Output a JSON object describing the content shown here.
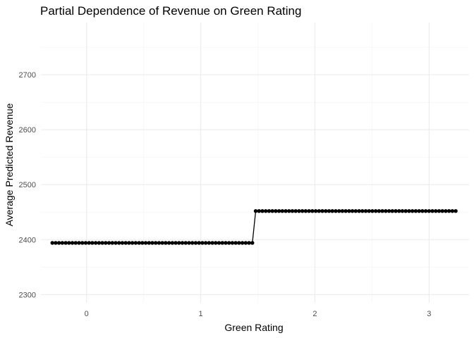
{
  "chart_data": {
    "type": "line",
    "title": "Partial Dependence of Revenue on Green Rating",
    "xlabel": "Green Rating",
    "ylabel": "Average Predicted Revenue",
    "xlim": [
      -0.4,
      3.35
    ],
    "ylim": [
      2285,
      2795
    ],
    "x_ticks": [
      0,
      1,
      2,
      3
    ],
    "y_ticks": [
      2300,
      2400,
      2500,
      2600,
      2700
    ],
    "grid": true,
    "legend": "none",
    "step_at": 1.46,
    "series": [
      {
        "x": [
          -0.3,
          -0.2708,
          -0.2416,
          -0.2124,
          -0.1832,
          -0.154,
          -0.1248,
          -0.0956,
          -0.0664,
          -0.0372,
          -0.008,
          0.0212,
          0.0504,
          0.0796,
          0.1088,
          0.138,
          0.1672,
          0.1964,
          0.2256,
          0.2548,
          0.284,
          0.3132,
          0.3424,
          0.3716,
          0.4008,
          0.43,
          0.4592,
          0.4884,
          0.5176,
          0.5468,
          0.576,
          0.6052,
          0.6344,
          0.6636,
          0.6928,
          0.722,
          0.7512,
          0.7804,
          0.8096,
          0.8388,
          0.868,
          0.8972,
          0.9264,
          0.9556,
          0.9848,
          1.014,
          1.0432,
          1.0724,
          1.1016,
          1.1308,
          1.16,
          1.1892,
          1.2184,
          1.2476,
          1.2768,
          1.306,
          1.3352,
          1.3644,
          1.3936,
          1.4228,
          1.452,
          1.4812,
          1.5104,
          1.5396,
          1.5688,
          1.598,
          1.6272,
          1.6564,
          1.6856,
          1.7148,
          1.744,
          1.7732,
          1.8024,
          1.8316,
          1.8608,
          1.89,
          1.9192,
          1.9484,
          1.9776,
          2.0068,
          2.036,
          2.0652,
          2.0944,
          2.1236,
          2.1528,
          2.182,
          2.2112,
          2.2404,
          2.2696,
          2.2988,
          2.328,
          2.3572,
          2.3864,
          2.4156,
          2.4448,
          2.474,
          2.5032,
          2.5324,
          2.5616,
          2.5908,
          2.62,
          2.6492,
          2.6784,
          2.7076,
          2.7368,
          2.766,
          2.7952,
          2.8244,
          2.8536,
          2.8828,
          2.912,
          2.9412,
          2.9704,
          2.9996,
          3.0288,
          3.058,
          3.0872,
          3.1164,
          3.1456,
          3.1748,
          3.204,
          3.2332
        ],
        "y": [
          2394,
          2394,
          2394,
          2394,
          2394,
          2394,
          2394,
          2394,
          2394,
          2394,
          2394,
          2394,
          2394,
          2394,
          2394,
          2394,
          2394,
          2394,
          2394,
          2394,
          2394,
          2394,
          2394,
          2394,
          2394,
          2394,
          2394,
          2394,
          2394,
          2394,
          2394,
          2394,
          2394,
          2394,
          2394,
          2394,
          2394,
          2394,
          2394,
          2394,
          2394,
          2394,
          2394,
          2394,
          2394,
          2394,
          2394,
          2394,
          2394,
          2394,
          2394,
          2394,
          2394,
          2394,
          2394,
          2394,
          2394,
          2394,
          2394,
          2394,
          2394,
          2452,
          2452,
          2452,
          2452,
          2452,
          2452,
          2452,
          2452,
          2452,
          2452,
          2452,
          2452,
          2452,
          2452,
          2452,
          2452,
          2452,
          2452,
          2452,
          2452,
          2452,
          2452,
          2452,
          2452,
          2452,
          2452,
          2452,
          2452,
          2452,
          2452,
          2452,
          2452,
          2452,
          2452,
          2452,
          2452,
          2452,
          2452,
          2452,
          2452,
          2452,
          2452,
          2452,
          2452,
          2452,
          2452,
          2452,
          2452,
          2452,
          2452,
          2452,
          2452,
          2452,
          2452,
          2452,
          2452,
          2452,
          2452,
          2452,
          2452,
          2452
        ]
      }
    ],
    "colors": {
      "line": "#000000",
      "point": "#000000",
      "grid": "#ebebeb"
    }
  }
}
